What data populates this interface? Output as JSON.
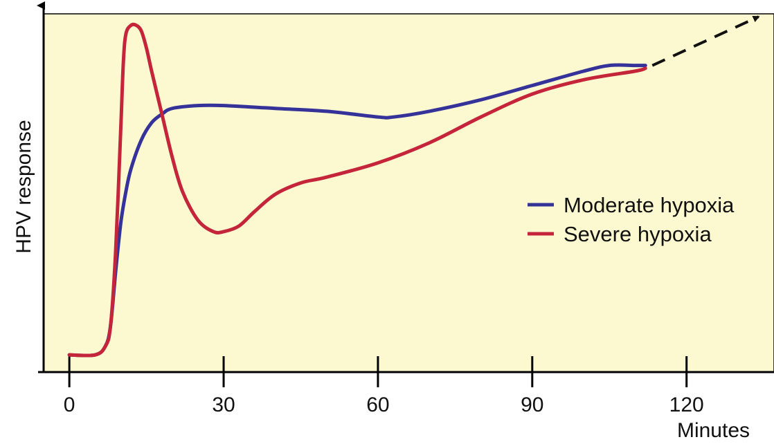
{
  "chart_data": {
    "type": "line",
    "title": "",
    "xlabel": "Minutes",
    "ylabel": "HPV response",
    "x_ticks": [
      0,
      30,
      60,
      90,
      120
    ],
    "xlim": [
      -5,
      137
    ],
    "ylim": [
      0,
      1.25
    ],
    "legend_position": "right",
    "grid": false,
    "plot_background": "#fcf8d0",
    "series": [
      {
        "name": "Moderate hypoxia",
        "color": "#35339a",
        "x": [
          0,
          5,
          7,
          8,
          9,
          10,
          11,
          12,
          14,
          16,
          18,
          20,
          25,
          30,
          40,
          50,
          60,
          63,
          70,
          80,
          90,
          100,
          105,
          110,
          112
        ],
        "y": [
          0.06,
          0.06,
          0.09,
          0.16,
          0.35,
          0.52,
          0.63,
          0.71,
          0.81,
          0.87,
          0.9,
          0.92,
          0.93,
          0.93,
          0.92,
          0.91,
          0.89,
          0.89,
          0.91,
          0.95,
          1.0,
          1.05,
          1.07,
          1.07,
          1.07
        ]
      },
      {
        "name": "Severe hypoxia",
        "color": "#c4253a",
        "x": [
          0,
          5,
          7,
          8,
          9,
          10,
          10.5,
          11,
          12,
          13,
          14,
          15,
          16,
          18,
          20,
          22,
          25,
          28,
          30,
          33,
          36,
          40,
          45,
          50,
          60,
          70,
          80,
          90,
          100,
          110,
          112
        ],
        "y": [
          0.06,
          0.06,
          0.09,
          0.16,
          0.42,
          0.85,
          1.08,
          1.18,
          1.21,
          1.21,
          1.19,
          1.13,
          1.05,
          0.9,
          0.75,
          0.63,
          0.53,
          0.49,
          0.49,
          0.51,
          0.56,
          0.62,
          0.66,
          0.68,
          0.73,
          0.8,
          0.89,
          0.97,
          1.02,
          1.05,
          1.06
        ]
      }
    ],
    "extrapolation": {
      "style": "dashed-arrow",
      "color": "#111111",
      "from": [
        112,
        1.065
      ],
      "to": [
        134,
        1.24
      ]
    }
  }
}
